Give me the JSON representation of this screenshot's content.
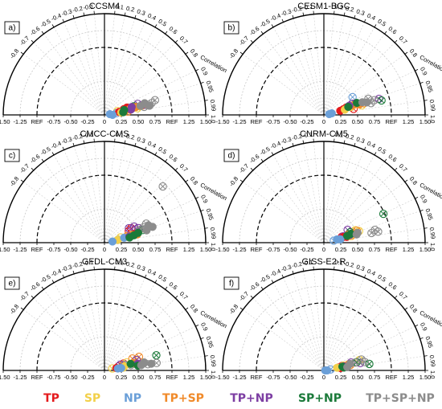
{
  "colors": {
    "TP": "#e41a1c",
    "SP": "#f2d04a",
    "NP": "#6a9fd8",
    "TP+SP": "#f08a2a",
    "TP+NP": "#7d3fa3",
    "SP+NP": "#1b7a3a",
    "TP+SP+NP": "#8c8c8c"
  },
  "legend": [
    "TP",
    "SP",
    "NP",
    "TP+SP",
    "TP+NP",
    "SP+NP",
    "TP+SP+NP"
  ],
  "axis": {
    "x_ticks": [
      "-1.50",
      "-1.25",
      "REF",
      "-0.75",
      "-0.50",
      "-0.25",
      "0",
      "0.25",
      "0.50",
      "0.75",
      "REF",
      "1.25",
      "1.50"
    ],
    "corr_pos": [
      "0.1",
      "0.2",
      "0.3",
      "0.4",
      "0.5",
      "0.6",
      "0.7",
      "0.8",
      "0.9",
      "0.95",
      "0.99",
      "1.0"
    ],
    "corr_neg": [
      "-0.1",
      "-0.2",
      "-0.3",
      "-0.4",
      "-0.5",
      "-0.6",
      "-0.7",
      "-0.8"
    ],
    "corr_label": "Correlation"
  },
  "chart_data": [
    {
      "type": "scatter",
      "title": "CCSM4",
      "panel": "a)",
      "series": [
        {
          "name": "TP",
          "filled": [
            [
              0.98,
              0.22
            ],
            [
              0.95,
              0.35
            ]
          ],
          "crossed": [
            [
              0.97,
              0.45
            ],
            [
              0.96,
              0.3
            ]
          ]
        },
        {
          "name": "SP",
          "filled": [
            [
              0.99,
              0.25
            ],
            [
              0.97,
              0.4
            ]
          ],
          "crossed": [
            [
              0.98,
              0.5
            ],
            [
              0.96,
              0.2
            ]
          ]
        },
        {
          "name": "NP",
          "filled": [
            [
              1.0,
              0.12
            ],
            [
              0.99,
              0.08
            ]
          ],
          "crossed": [
            [
              0.99,
              0.18
            ]
          ]
        },
        {
          "name": "TP+SP",
          "filled": [
            [
              0.97,
              0.48
            ],
            [
              0.98,
              0.32
            ]
          ],
          "crossed": [
            [
              0.97,
              0.58
            ],
            [
              0.99,
              0.35
            ]
          ]
        },
        {
          "name": "TP+NP",
          "filled": [
            [
              0.96,
              0.42
            ],
            [
              0.98,
              0.4
            ]
          ],
          "crossed": [
            [
              0.95,
              0.52
            ],
            [
              0.97,
              0.62
            ]
          ]
        },
        {
          "name": "SP+NP",
          "filled": [
            [
              0.97,
              0.3
            ],
            [
              0.99,
              0.28
            ]
          ],
          "crossed": [
            [
              0.96,
              0.45
            ]
          ]
        },
        {
          "name": "TP+SP+NP",
          "filled": [
            [
              0.97,
              0.55
            ],
            [
              0.96,
              0.62
            ],
            [
              0.98,
              0.68
            ]
          ],
          "crossed": [
            [
              0.96,
              0.78
            ],
            [
              0.97,
              0.72
            ],
            [
              0.98,
              0.6
            ]
          ]
        }
      ]
    },
    {
      "type": "scatter",
      "title": "CESM1-BGC",
      "panel": "b)",
      "series": [
        {
          "name": "TP",
          "filled": [
            [
              0.97,
              0.25
            ],
            [
              0.96,
              0.3
            ]
          ],
          "crossed": [
            [
              0.95,
              0.35
            ],
            [
              0.98,
              0.45
            ]
          ]
        },
        {
          "name": "SP",
          "filled": [
            [
              0.97,
              0.32
            ],
            [
              0.96,
              0.42
            ]
          ],
          "crossed": [
            [
              0.95,
              0.5
            ],
            [
              0.97,
              0.58
            ]
          ]
        },
        {
          "name": "NP",
          "filled": [
            [
              0.98,
              0.12
            ],
            [
              0.99,
              0.08
            ]
          ],
          "crossed": [
            [
              0.85,
              0.5
            ]
          ]
        },
        {
          "name": "TP+SP",
          "filled": [
            [
              0.95,
              0.45
            ],
            [
              0.96,
              0.55
            ]
          ],
          "crossed": [
            [
              0.94,
              0.5
            ],
            [
              0.96,
              0.62
            ]
          ]
        },
        {
          "name": "TP+NP",
          "filled": [
            [
              0.94,
              0.4
            ]
          ],
          "crossed": [
            [
              0.94,
              0.5
            ],
            [
              0.93,
              0.45
            ],
            [
              0.96,
              0.85
            ]
          ]
        },
        {
          "name": "SP+NP",
          "filled": [
            [
              0.95,
              0.38
            ],
            [
              0.94,
              0.52
            ]
          ],
          "crossed": [
            [
              0.97,
              0.88
            ]
          ]
        },
        {
          "name": "TP+SP+NP",
          "filled": [
            [
              0.95,
              0.6
            ],
            [
              0.96,
              0.66
            ]
          ],
          "crossed": [
            [
              0.94,
              0.7
            ],
            [
              0.96,
              0.78
            ],
            [
              0.97,
              0.72
            ]
          ]
        }
      ]
    },
    {
      "type": "scatter",
      "title": "CMCC-CMS",
      "panel": "c)",
      "series": [
        {
          "name": "TP",
          "filled": [
            [
              0.96,
              0.45
            ]
          ],
          "crossed": [
            [
              0.9,
              0.4
            ],
            [
              0.88,
              0.45
            ]
          ]
        },
        {
          "name": "SP",
          "filled": [
            [
              0.98,
              0.2
            ],
            [
              0.97,
              0.35
            ]
          ],
          "crossed": [
            [
              0.95,
              0.25
            ]
          ]
        },
        {
          "name": "NP",
          "filled": [
            [
              0.99,
              0.12
            ],
            [
              0.97,
              0.3
            ]
          ],
          "crossed": [
            [
              0.98,
              0.2
            ]
          ]
        },
        {
          "name": "TP+SP",
          "filled": [
            [
              0.96,
              0.42
            ],
            [
              0.97,
              0.5
            ]
          ],
          "crossed": [
            [
              0.96,
              0.35
            ],
            [
              0.94,
              0.55
            ]
          ]
        },
        {
          "name": "TP+NP",
          "filled": [
            [
              0.97,
              0.38
            ]
          ],
          "crossed": [
            [
              0.86,
              0.42
            ],
            [
              0.88,
              0.5
            ],
            [
              0.92,
              0.55
            ]
          ]
        },
        {
          "name": "SP+NP",
          "filled": [
            [
              0.97,
              0.45
            ],
            [
              0.98,
              0.38
            ],
            [
              0.96,
              0.52
            ]
          ],
          "crossed": [
            [
              0.95,
              0.6
            ]
          ]
        },
        {
          "name": "TP+SP+NP",
          "filled": [
            [
              0.96,
              0.65
            ],
            [
              0.95,
              0.75
            ],
            [
              0.93,
              0.7
            ]
          ],
          "crossed": [
            [
              0.93,
              0.62
            ],
            [
              0.91,
              0.68
            ],
            [
              0.94,
              0.55
            ],
            [
              0.72,
              1.2
            ]
          ]
        }
      ]
    },
    {
      "type": "scatter",
      "title": "CNRM-CM5",
      "panel": "d)",
      "series": [
        {
          "name": "TP",
          "filled": [
            [
              0.97,
              0.35
            ],
            [
              0.96,
              0.3
            ]
          ],
          "crossed": [
            [
              0.95,
              0.28
            ]
          ]
        },
        {
          "name": "SP",
          "filled": [
            [
              0.97,
              0.4
            ],
            [
              0.96,
              0.45
            ]
          ],
          "crossed": [
            [
              0.95,
              0.55
            ],
            [
              0.93,
              0.5
            ]
          ]
        },
        {
          "name": "NP",
          "filled": [
            [
              0.98,
              0.25
            ],
            [
              0.97,
              0.2
            ]
          ],
          "crossed": [
            [
              0.98,
              0.15
            ]
          ]
        },
        {
          "name": "TP+SP",
          "filled": [
            [
              0.95,
              0.38
            ],
            [
              0.96,
              0.48
            ]
          ],
          "crossed": [
            [
              0.94,
              0.52
            ],
            [
              0.97,
              0.42
            ]
          ]
        },
        {
          "name": "TP+NP",
          "filled": [
            [
              0.96,
              0.4
            ]
          ],
          "crossed": [
            [
              0.88,
              0.4
            ],
            [
              0.95,
              0.3
            ]
          ]
        },
        {
          "name": "SP+NP",
          "filled": [
            [
              0.96,
              0.36
            ],
            [
              0.95,
              0.42
            ]
          ],
          "crossed": [
            [
              0.93,
              0.42
            ],
            [
              0.9,
              0.98
            ]
          ]
        },
        {
          "name": "TP+SP+NP",
          "filled": [
            [
              0.96,
              0.52
            ],
            [
              0.97,
              0.5
            ]
          ],
          "crossed": [
            [
              0.98,
              0.72
            ],
            [
              0.98,
              0.82
            ],
            [
              0.97,
              0.78
            ]
          ]
        }
      ]
    },
    {
      "type": "scatter",
      "title": "GFDL-CM3",
      "panel": "e)",
      "series": [
        {
          "name": "TP",
          "filled": [
            [
              0.98,
              0.18
            ]
          ],
          "crossed": [
            [
              0.96,
              0.22
            ],
            [
              0.94,
              0.3
            ]
          ]
        },
        {
          "name": "SP",
          "filled": [
            [
              0.98,
              0.3
            ],
            [
              0.99,
              0.28
            ]
          ],
          "crossed": [
            [
              0.94,
              0.35
            ],
            [
              0.97,
              0.12
            ]
          ]
        },
        {
          "name": "NP",
          "filled": [
            [
              0.99,
              0.25
            ],
            [
              0.99,
              0.2
            ]
          ],
          "crossed": [
            [
              0.96,
              0.3
            ]
          ]
        },
        {
          "name": "TP+SP",
          "filled": [
            [
              0.97,
              0.45
            ]
          ],
          "crossed": [
            [
              0.92,
              0.45
            ],
            [
              0.93,
              0.55
            ],
            [
              0.96,
              0.28
            ]
          ]
        },
        {
          "name": "TP+NP",
          "filled": [
            [
              0.98,
              0.5
            ]
          ],
          "crossed": [
            [
              0.94,
              0.25
            ],
            [
              0.95,
              0.5
            ]
          ]
        },
        {
          "name": "SP+NP",
          "filled": [
            [
              0.97,
              0.4
            ],
            [
              0.99,
              0.5
            ]
          ],
          "crossed": [
            [
              0.96,
              0.8
            ]
          ]
        },
        {
          "name": "TP+SP+NP",
          "filled": [
            [
              0.99,
              0.55
            ],
            [
              0.98,
              0.6
            ],
            [
              0.99,
              0.7
            ]
          ],
          "crossed": [
            [
              0.98,
              0.4
            ],
            [
              0.99,
              0.78
            ],
            [
              0.99,
              0.65
            ]
          ]
        }
      ]
    },
    {
      "type": "scatter",
      "title": "GISS-E2-R",
      "panel": "f)",
      "series": [
        {
          "name": "TP",
          "filled": [
            [
              0.98,
              0.22
            ],
            [
              0.99,
              0.25
            ]
          ],
          "crossed": [
            [
              0.97,
              0.28
            ]
          ]
        },
        {
          "name": "SP",
          "filled": [
            [
              0.98,
              0.2
            ]
          ],
          "crossed": [
            [
              0.97,
              0.3
            ],
            [
              0.96,
              0.55
            ]
          ]
        },
        {
          "name": "NP",
          "filled": [
            [
              1.0,
              0.05
            ],
            [
              1.0,
              0.02
            ]
          ],
          "crossed": [
            [
              0.99,
              0.1
            ]
          ]
        },
        {
          "name": "TP+SP",
          "filled": [
            [
              0.98,
              0.32
            ]
          ],
          "crossed": [
            [
              0.97,
              0.38
            ],
            [
              0.98,
              0.4
            ]
          ]
        },
        {
          "name": "TP+NP",
          "filled": [
            [
              0.98,
              0.3
            ]
          ],
          "crossed": [
            [
              0.96,
              0.42
            ],
            [
              0.98,
              0.55
            ]
          ]
        },
        {
          "name": "SP+NP",
          "filled": [
            [
              0.98,
              0.28
            ],
            [
              0.99,
              0.3
            ]
          ],
          "crossed": [
            [
              0.97,
              0.5
            ],
            [
              0.99,
              0.68
            ]
          ]
        },
        {
          "name": "TP+SP+NP",
          "filled": [
            [
              0.97,
              0.4
            ],
            [
              0.99,
              0.35
            ]
          ],
          "crossed": [
            [
              0.97,
              0.48
            ],
            [
              0.96,
              0.58
            ],
            [
              0.98,
              0.62
            ]
          ]
        }
      ]
    }
  ]
}
